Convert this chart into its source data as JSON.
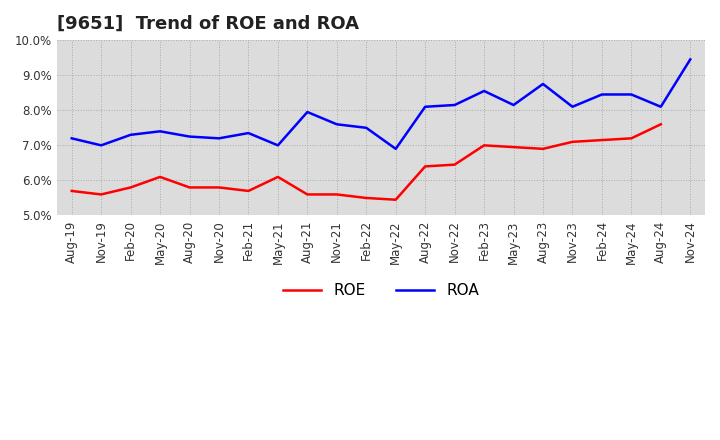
{
  "title": "[9651]  Trend of ROE and ROA",
  "x_labels": [
    "Aug-19",
    "Nov-19",
    "Feb-20",
    "May-20",
    "Aug-20",
    "Nov-20",
    "Feb-21",
    "May-21",
    "Aug-21",
    "Nov-21",
    "Feb-22",
    "May-22",
    "Aug-22",
    "Nov-22",
    "Feb-23",
    "May-23",
    "Aug-23",
    "Nov-23",
    "Feb-24",
    "May-24",
    "Aug-24",
    "Nov-24"
  ],
  "roe": [
    5.7,
    5.6,
    5.8,
    6.1,
    5.8,
    5.8,
    5.7,
    6.1,
    5.6,
    5.6,
    5.5,
    5.45,
    6.4,
    6.45,
    7.0,
    6.95,
    6.9,
    7.1,
    7.15,
    7.2,
    7.6,
    null
  ],
  "roa": [
    7.2,
    7.0,
    7.3,
    7.4,
    7.25,
    7.2,
    7.35,
    7.0,
    7.95,
    7.6,
    7.5,
    6.9,
    8.1,
    8.15,
    8.55,
    8.15,
    8.75,
    8.1,
    8.45,
    8.45,
    8.1,
    9.45
  ],
  "ylim_min": 5.0,
  "ylim_max": 10.0,
  "y_ticks": [
    5.0,
    6.0,
    7.0,
    8.0,
    9.0,
    10.0
  ],
  "roe_color": "#ff0000",
  "roa_color": "#0000ff",
  "background_color": "#ffffff",
  "plot_bg_color": "#dcdcdc",
  "grid_color": "#aaaaaa",
  "title_fontsize": 13,
  "legend_fontsize": 11,
  "tick_fontsize": 8.5
}
